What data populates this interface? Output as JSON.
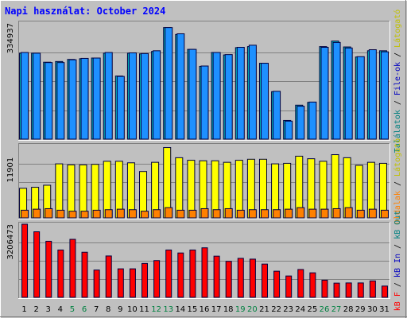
{
  "title": "Napi használat: October 2024",
  "chart_data": [
    {
      "type": "bar",
      "panel": "top",
      "categories": [
        "1",
        "2",
        "3",
        "4",
        "5",
        "6",
        "7",
        "8",
        "9",
        "10",
        "11",
        "12",
        "13",
        "14",
        "15",
        "16",
        "17",
        "18",
        "19",
        "20",
        "21",
        "22",
        "23",
        "24",
        "25",
        "26",
        "27",
        "28",
        "29",
        "30",
        "31"
      ],
      "series": [
        {
          "name": "Találatok",
          "color": "#00c0c0",
          "values": [
            248000,
            248000,
            222000,
            224000,
            230000,
            232000,
            234000,
            248000,
            182000,
            248000,
            246000,
            253000,
            322000,
            302000,
            259000,
            210000,
            250000,
            243000,
            264000,
            267000,
            219000,
            137000,
            54000,
            98000,
            106000,
            267000,
            283000,
            266000,
            237000,
            255000,
            255000
          ]
        },
        {
          "name": "File-ok",
          "color": "#1e90ff",
          "values": [
            250000,
            248000,
            221000,
            221000,
            229000,
            233000,
            234000,
            250000,
            181000,
            249000,
            247000,
            255000,
            322000,
            304000,
            259000,
            211000,
            250000,
            244000,
            265000,
            271000,
            219000,
            138000,
            52000,
            95000,
            107000,
            265000,
            279000,
            263000,
            238000,
            258000,
            252000
          ]
        }
      ],
      "ytick": "334937",
      "ylim": [
        0,
        334937
      ]
    },
    {
      "type": "bar",
      "panel": "middle",
      "categories": [
        "1",
        "2",
        "3",
        "4",
        "5",
        "6",
        "7",
        "8",
        "9",
        "10",
        "11",
        "12",
        "13",
        "14",
        "15",
        "16",
        "17",
        "18",
        "19",
        "20",
        "21",
        "22",
        "23",
        "24",
        "25",
        "26",
        "27",
        "28",
        "29",
        "30",
        "31"
      ],
      "series": [
        {
          "name": "Látogató",
          "color": "#ffff00",
          "values": [
            5800,
            6000,
            6400,
            10600,
            10400,
            10400,
            10500,
            11100,
            11100,
            10800,
            9100,
            10900,
            13800,
            11800,
            11300,
            11200,
            11200,
            10900,
            11300,
            11500,
            11500,
            10600,
            10700,
            12100,
            11600,
            11100,
            12400,
            11800,
            10300,
            10900,
            10700
          ]
        },
        {
          "name": "Oldalak",
          "color": "#ff8000",
          "values": [
            1500,
            1700,
            1800,
            1500,
            1300,
            1300,
            1500,
            1600,
            1700,
            1600,
            1300,
            1600,
            2000,
            1500,
            1500,
            1800,
            1600,
            1800,
            1500,
            1600,
            1600,
            1600,
            1700,
            2000,
            1700,
            1700,
            1800,
            2000,
            1500,
            1700,
            1500
          ]
        }
      ],
      "ytick": "11901",
      "ylim": [
        0,
        14200
      ]
    },
    {
      "type": "bar",
      "panel": "bottom",
      "categories": [
        "1",
        "2",
        "3",
        "4",
        "5",
        "6",
        "7",
        "8",
        "9",
        "10",
        "11",
        "12",
        "13",
        "14",
        "15",
        "16",
        "17",
        "18",
        "19",
        "20",
        "21",
        "22",
        "23",
        "24",
        "25",
        "26",
        "27",
        "28",
        "29",
        "30",
        "31"
      ],
      "series": [
        {
          "name": "kB F",
          "color": "#ff0000",
          "values": [
            3206473,
            2874000,
            2459000,
            2075000,
            2543000,
            1978000,
            1197000,
            1814000,
            1250000,
            1250000,
            1486000,
            1612000,
            2075000,
            1945000,
            2075000,
            2171000,
            1806000,
            1578000,
            1709000,
            1675000,
            1458000,
            1146000,
            936000,
            1220000,
            1075000,
            753000,
            623000,
            631000,
            631000,
            720000,
            494000
          ]
        }
      ],
      "ytick": "3206473",
      "ylim": [
        0,
        3206473
      ]
    }
  ],
  "days": [
    {
      "label": "1",
      "weekend": false
    },
    {
      "label": "2",
      "weekend": false
    },
    {
      "label": "3",
      "weekend": false
    },
    {
      "label": "4",
      "weekend": false
    },
    {
      "label": "5",
      "weekend": true
    },
    {
      "label": "6",
      "weekend": true
    },
    {
      "label": "7",
      "weekend": false
    },
    {
      "label": "8",
      "weekend": false
    },
    {
      "label": "9",
      "weekend": false
    },
    {
      "label": "10",
      "weekend": false
    },
    {
      "label": "11",
      "weekend": false
    },
    {
      "label": "12",
      "weekend": true
    },
    {
      "label": "13",
      "weekend": true
    },
    {
      "label": "14",
      "weekend": false
    },
    {
      "label": "15",
      "weekend": false
    },
    {
      "label": "16",
      "weekend": false
    },
    {
      "label": "17",
      "weekend": false
    },
    {
      "label": "18",
      "weekend": false
    },
    {
      "label": "19",
      "weekend": true
    },
    {
      "label": "20",
      "weekend": true
    },
    {
      "label": "21",
      "weekend": false
    },
    {
      "label": "22",
      "weekend": false
    },
    {
      "label": "23",
      "weekend": false
    },
    {
      "label": "24",
      "weekend": false
    },
    {
      "label": "25",
      "weekend": false
    },
    {
      "label": "26",
      "weekend": true
    },
    {
      "label": "27",
      "weekend": true
    },
    {
      "label": "28",
      "weekend": false
    },
    {
      "label": "29",
      "weekend": false
    },
    {
      "label": "30",
      "weekend": false
    },
    {
      "label": "31",
      "weekend": false
    }
  ],
  "side_labels": {
    "top": [
      {
        "text": "Találatok",
        "color": "#008080"
      },
      {
        "text": " / ",
        "color": "#000000"
      },
      {
        "text": "File-ok",
        "color": "#0000c0"
      },
      {
        "text": " / ",
        "color": "#000000"
      },
      {
        "text": "Látogató",
        "color": "#c0c000"
      }
    ],
    "middle": [
      {
        "text": "Oldalak",
        "color": "#ff8000"
      },
      {
        "text": " / ",
        "color": "#000000"
      },
      {
        "text": "Látogató",
        "color": "#c0c000"
      }
    ],
    "bottom": [
      {
        "text": "kB F",
        "color": "#ff0000"
      },
      {
        "text": " / ",
        "color": "#000000"
      },
      {
        "text": "kB In",
        "color": "#0000c0"
      },
      {
        "text": " / ",
        "color": "#000000"
      },
      {
        "text": "kB Out",
        "color": "#008080"
      }
    ]
  },
  "colors": {
    "background": "#c0c0c0",
    "grid": "#808080",
    "title": "#0000ff",
    "weekday": "#000000",
    "weekend": "#008040"
  }
}
